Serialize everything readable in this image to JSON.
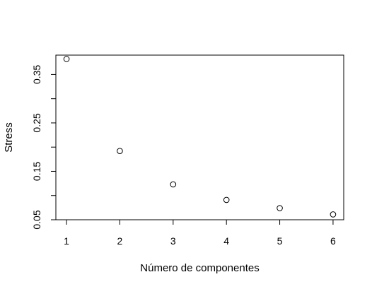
{
  "chart_data": {
    "type": "scatter",
    "title": "",
    "xlabel": "Número de componentes",
    "ylabel": "Stress",
    "x": [
      1,
      2,
      3,
      4,
      5,
      6
    ],
    "y": [
      0.382,
      0.192,
      0.123,
      0.091,
      0.074,
      0.061
    ],
    "xlim": [
      0.8,
      6.2
    ],
    "ylim": [
      0.05,
      0.39
    ],
    "x_ticks": [
      1,
      2,
      3,
      4,
      5,
      6
    ],
    "x_tick_labels": [
      "1",
      "2",
      "3",
      "4",
      "5",
      "6"
    ],
    "y_ticks": [
      0.05,
      0.1,
      0.15,
      0.2,
      0.25,
      0.3,
      0.35
    ],
    "y_tick_labels": [
      "0.05",
      "",
      "0.15",
      "",
      "0.25",
      "",
      "0.35"
    ],
    "grid": false,
    "marker": "open-circle",
    "colors": {
      "marker": "#000000",
      "axis": "#000000"
    }
  }
}
